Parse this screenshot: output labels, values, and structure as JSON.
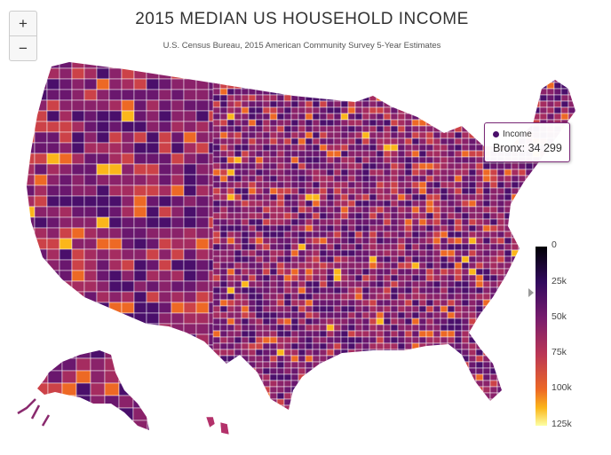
{
  "title": "2015 MEDIAN US HOUSEHOLD INCOME",
  "subtitle": "U.S. Census Bureau, 2015 American Community Survey 5-Year Estimates",
  "zoom": {
    "in_label": "+",
    "out_label": "−"
  },
  "tooltip": {
    "series": "Income",
    "text": "Bronx: 34 299",
    "county": "Bronx",
    "value": 34299
  },
  "legend": {
    "labels": [
      "0",
      "25k",
      "50k",
      "75k",
      "100k",
      "125k"
    ],
    "stops": [
      0,
      25000,
      50000,
      75000,
      100000,
      125000
    ],
    "colors": [
      "#000004",
      "#320a5e",
      "#781c6d",
      "#ba3655",
      "#ed6925",
      "#fbb61a",
      "#fcffa4"
    ],
    "arrow_value": 34299
  },
  "colors": {
    "border": "#ffffff",
    "no_data": "#ffffff",
    "accent": "#7b2a78"
  }
}
